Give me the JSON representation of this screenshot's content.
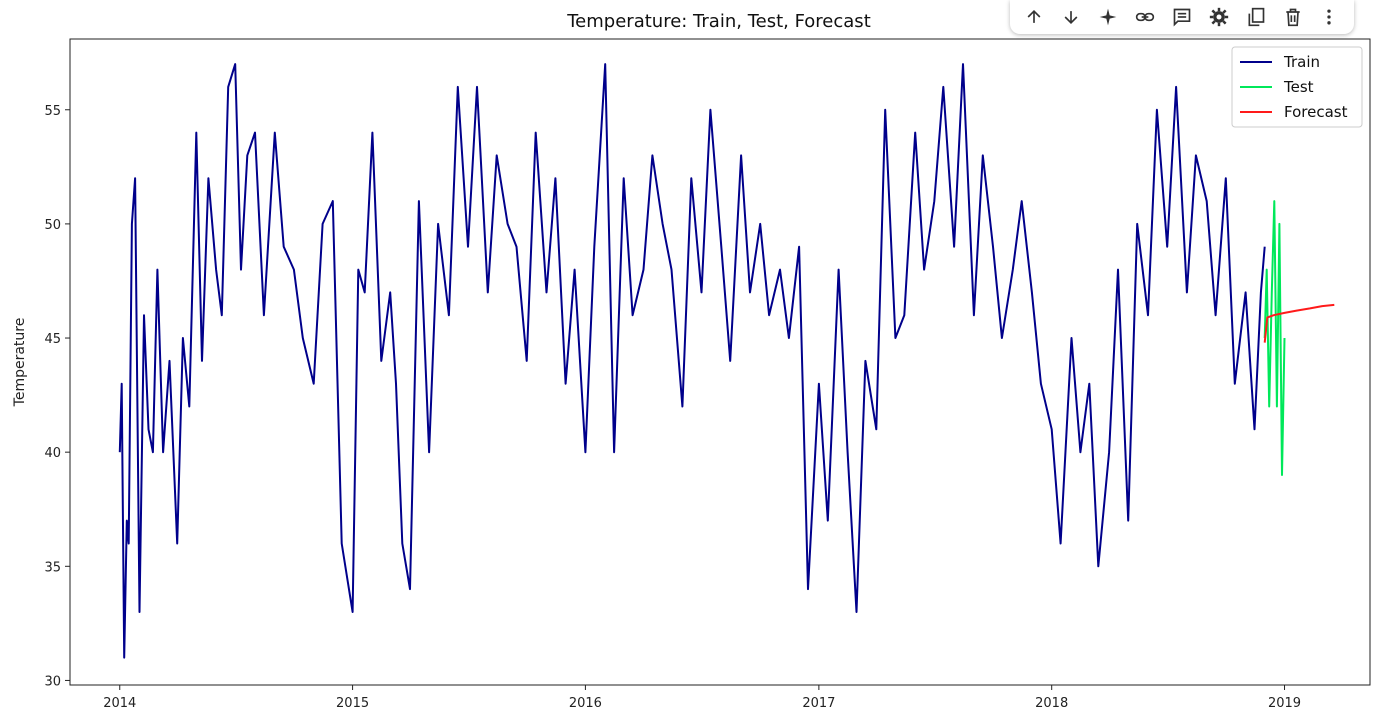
{
  "toolbar": {
    "buttons": [
      {
        "name": "move-up-icon"
      },
      {
        "name": "move-down-icon"
      },
      {
        "name": "sparkle-icon"
      },
      {
        "name": "link-icon"
      },
      {
        "name": "comment-icon"
      },
      {
        "name": "gear-icon"
      },
      {
        "name": "mirror-cell-icon"
      },
      {
        "name": "trash-icon"
      },
      {
        "name": "more-vert-icon"
      }
    ]
  },
  "chart_data": {
    "type": "line",
    "title": "Temperature: Train, Test, Forecast",
    "xlabel": "",
    "ylabel": "Temperature",
    "xlim": [
      "2013-10-15",
      "2019-05-15"
    ],
    "ylim": [
      29.8,
      58.1
    ],
    "yticks": [
      30,
      35,
      40,
      45,
      50,
      55
    ],
    "xticks": [
      "2014-01-01",
      "2015-01-01",
      "2016-01-01",
      "2017-01-01",
      "2018-01-01",
      "2019-01-01"
    ],
    "xtick_labels": [
      "2014",
      "2015",
      "2016",
      "2017",
      "2018",
      "2019"
    ],
    "grid": false,
    "legend": "top-right",
    "series": [
      {
        "name": "Train",
        "color": "#00008b",
        "x": [
          "2014-01-01",
          "2014-01-04",
          "2014-01-08",
          "2014-01-12",
          "2014-01-15",
          "2014-01-20",
          "2014-01-25",
          "2014-02-01",
          "2014-02-08",
          "2014-02-15",
          "2014-02-22",
          "2014-03-01",
          "2014-03-10",
          "2014-03-20",
          "2014-04-01",
          "2014-04-10",
          "2014-04-20",
          "2014-05-01",
          "2014-05-10",
          "2014-05-20",
          "2014-06-01",
          "2014-06-10",
          "2014-06-20",
          "2014-07-01",
          "2014-07-10",
          "2014-07-20",
          "2014-08-01",
          "2014-08-15",
          "2014-09-01",
          "2014-09-15",
          "2014-10-01",
          "2014-10-15",
          "2014-11-01",
          "2014-11-15",
          "2014-12-01",
          "2014-12-15",
          "2015-01-01",
          "2015-01-10",
          "2015-01-20",
          "2015-02-01",
          "2015-02-15",
          "2015-03-01",
          "2015-03-10",
          "2015-03-20",
          "2015-04-01",
          "2015-04-15",
          "2015-05-01",
          "2015-05-15",
          "2015-06-01",
          "2015-06-15",
          "2015-07-01",
          "2015-07-15",
          "2015-08-01",
          "2015-08-15",
          "2015-09-01",
          "2015-09-15",
          "2015-10-01",
          "2015-10-15",
          "2015-11-01",
          "2015-11-15",
          "2015-12-01",
          "2015-12-15",
          "2016-01-01",
          "2016-01-15",
          "2016-02-01",
          "2016-02-15",
          "2016-03-01",
          "2016-03-15",
          "2016-04-01",
          "2016-04-15",
          "2016-05-01",
          "2016-05-15",
          "2016-06-01",
          "2016-06-15",
          "2016-07-01",
          "2016-07-15",
          "2016-08-01",
          "2016-08-15",
          "2016-09-01",
          "2016-09-15",
          "2016-10-01",
          "2016-10-15",
          "2016-11-01",
          "2016-11-15",
          "2016-12-01",
          "2016-12-15",
          "2017-01-01",
          "2017-01-15",
          "2017-02-01",
          "2017-02-15",
          "2017-03-01",
          "2017-03-15",
          "2017-04-01",
          "2017-04-15",
          "2017-05-01",
          "2017-05-15",
          "2017-06-01",
          "2017-06-15",
          "2017-07-01",
          "2017-07-15",
          "2017-08-01",
          "2017-08-15",
          "2017-09-01",
          "2017-09-15",
          "2017-10-01",
          "2017-10-15",
          "2017-11-01",
          "2017-11-15",
          "2017-12-01",
          "2017-12-15",
          "2018-01-01",
          "2018-01-15",
          "2018-02-01",
          "2018-02-15",
          "2018-03-01",
          "2018-03-15",
          "2018-04-01",
          "2018-04-15",
          "2018-05-01",
          "2018-05-15",
          "2018-06-01",
          "2018-06-15",
          "2018-07-01",
          "2018-07-15",
          "2018-08-01",
          "2018-08-15",
          "2018-09-01",
          "2018-09-15",
          "2018-10-01",
          "2018-10-15",
          "2018-11-01",
          "2018-11-15",
          "2018-11-25",
          "2018-12-01"
        ],
        "values": [
          40,
          43,
          31,
          37,
          36,
          50,
          52,
          33,
          46,
          41,
          40,
          48,
          40,
          44,
          36,
          45,
          42,
          54,
          44,
          52,
          48,
          46,
          56,
          57,
          48,
          53,
          54,
          46,
          54,
          49,
          48,
          45,
          43,
          50,
          51,
          36,
          33,
          48,
          47,
          54,
          44,
          47,
          43,
          36,
          34,
          51,
          40,
          50,
          46,
          56,
          49,
          56,
          47,
          53,
          50,
          49,
          44,
          54,
          47,
          52,
          43,
          48,
          40,
          49,
          57,
          40,
          52,
          46,
          48,
          53,
          50,
          48,
          42,
          52,
          47,
          55,
          49,
          44,
          53,
          47,
          50,
          46,
          48,
          45,
          49,
          34,
          43,
          37,
          48,
          40,
          33,
          44,
          41,
          55,
          45,
          46,
          54,
          48,
          51,
          56,
          49,
          57,
          46,
          53,
          49,
          45,
          48,
          51,
          47,
          43,
          41,
          36,
          45,
          40,
          43,
          35,
          40,
          48,
          37,
          50,
          46,
          55,
          49,
          56,
          47,
          53,
          51,
          46,
          52,
          43,
          47,
          41,
          47,
          49
        ],
        "values_note": "approximate, dense daily series sampled"
      },
      {
        "name": "Test",
        "color": "#00e85a",
        "x": [
          "2018-12-01",
          "2018-12-04",
          "2018-12-08",
          "2018-12-12",
          "2018-12-16",
          "2018-12-20",
          "2018-12-24",
          "2018-12-28",
          "2019-01-01"
        ],
        "values": [
          45,
          48,
          42,
          47,
          51,
          42,
          50,
          39,
          45
        ]
      },
      {
        "name": "Forecast",
        "color": "#ff1a1a",
        "x": [
          "2018-12-01",
          "2018-12-05",
          "2018-12-15",
          "2019-01-01",
          "2019-01-20",
          "2019-02-10",
          "2019-03-01",
          "2019-03-20"
        ],
        "values": [
          44.8,
          45.9,
          46.0,
          46.1,
          46.2,
          46.3,
          46.4,
          46.45
        ]
      }
    ]
  }
}
